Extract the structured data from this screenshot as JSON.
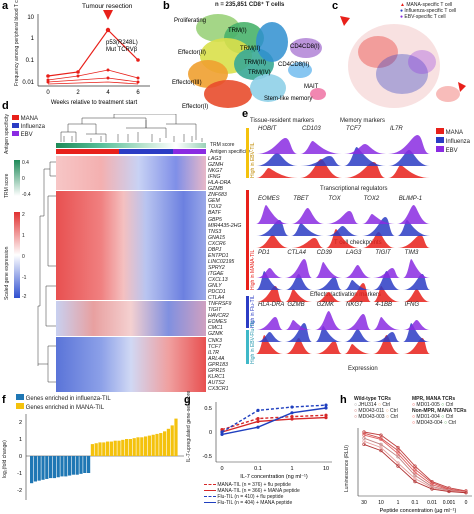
{
  "panels": {
    "a": {
      "label": "a",
      "annotation": "Tumour resection",
      "mutation": "p53(R248L)",
      "tcr": "Mut TCRVβ",
      "ylabel": "Frequency among peripheral blood T cells (%)",
      "xlabel": "Weeks relative to treatment start",
      "yticks": [
        "10",
        "1",
        "0.1",
        "0.01"
      ],
      "xticks": [
        "0",
        "2",
        "4",
        "6"
      ]
    },
    "b": {
      "label": "b",
      "title": "n = 235,851 CD8⁺ T cells",
      "clusters": [
        "Proliferating",
        "TRM(I)",
        "TRM(II)",
        "TRM(III)",
        "TRM(IV)",
        "Effector(II)",
        "Effector(III)",
        "Effector(I)",
        "CD4CD8(I)",
        "CD4CD8(II)",
        "MAIT",
        "Stem-like memory"
      ]
    },
    "c": {
      "label": "c",
      "legend": [
        "MANA-specific T cell",
        "Influenza-specific T cell",
        "EBV-specific T cell"
      ]
    },
    "d": {
      "label": "d",
      "row_labels": [
        "TRM score",
        "Antigen specificity"
      ],
      "legend_title": "Antigen specificity",
      "legend": [
        "MANA",
        "Influenza",
        "EBV"
      ],
      "trm_title": "TRM score",
      "trm_ticks": [
        "0.4",
        "0",
        "-0.4"
      ],
      "expr_title": "Scaled gene expression",
      "expr_ticks": [
        "2",
        "1",
        "0",
        "-1",
        "-2"
      ],
      "genes": [
        "LAG3",
        "GZMH",
        "NKG7",
        "IFNG",
        "HLA-DRA",
        "GZMB",
        "ZNF683",
        "GEM",
        "TOX2",
        "BATF",
        "GBP5",
        "MIR4435-2HG",
        "TNS3",
        "GNA15",
        "CXCR6",
        "DBPJ",
        "ENTPD1",
        "LINC02195",
        "SPRY2",
        "ITGAE",
        "CXCL13",
        "GNLY",
        "PDCD1",
        "CTLA4",
        "TNFRSF9",
        "TIGIT",
        "HAVCR2",
        "EOMES",
        "CMC1",
        "GZMK",
        "CNK3",
        "TCF7",
        "IL7R",
        "ARL4A",
        "GPR183",
        "GPR15",
        "KLRC1",
        "AUTS2",
        "CX3CR1"
      ]
    },
    "e": {
      "label": "e",
      "group_headers": [
        "Tissue-resident markers",
        "Memory markers",
        "Transcriptional regulators",
        "T cell checkpoints",
        "Effector/activation markers"
      ],
      "rows": [
        {
          "genes": [
            "HOBIT",
            "CD103",
            "TCF7",
            "IL7R"
          ]
        },
        {
          "genes": [
            "EOMES",
            "TBET",
            "TOX",
            "TOX2",
            "BLIMP-1"
          ]
        },
        {
          "genes": [
            "PD1",
            "CTLA4",
            "CD39",
            "LAG3",
            "TIGIT",
            "TIM3"
          ]
        },
        {
          "genes": [
            "HLA-DRA",
            "GZMB",
            "GZMK",
            "NKG7",
            "4-1BB",
            "IFNG"
          ]
        }
      ],
      "side_labels": [
        "High in EBV-TIL",
        "High in MANA-TIL",
        "High in Flu-TIL",
        "High in EBV-Flu-TIL"
      ],
      "legend": [
        "MANA",
        "Influenza",
        "EBV"
      ],
      "xlabel": "Expression"
    },
    "f": {
      "label": "f",
      "legend": [
        "Genes enriched in influenza-TIL",
        "Genes enriched in MANA-TIL"
      ],
      "ylabel": "log₂(fold change)",
      "yticks": [
        "2",
        "1",
        "0",
        "-1",
        "-2"
      ],
      "chart_data": {
        "type": "bar",
        "series": [
          {
            "name": "Genes enriched in influenza-TIL",
            "values": [
              -1.6,
              -1.5,
              -1.45,
              -1.4,
              -1.35,
              -1.3,
              -1.3,
              -1.25,
              -1.2,
              -1.2,
              -1.15,
              -1.1,
              -1.1,
              -1.05,
              -1.0,
              -1.0
            ]
          },
          {
            "name": "Genes enriched in MANA-TIL",
            "values": [
              0.7,
              0.75,
              0.8,
              0.8,
              0.85,
              0.85,
              0.9,
              0.9,
              0.95,
              1.0,
              1.0,
              1.05,
              1.1,
              1.1,
              1.15,
              1.2,
              1.25,
              1.3,
              1.35,
              1.45,
              1.6,
              1.8,
              2.2
            ]
          }
        ],
        "ylim": [
          -2,
          2.5
        ]
      }
    },
    "g": {
      "label": "g",
      "ylabel": "IL-7-upregulated gene-set score",
      "xlabel": "IL-7 concentration (ng ml⁻¹)",
      "xticks": [
        "0",
        "0.1",
        "1",
        "10"
      ],
      "yticks": [
        "0.5",
        "0",
        "-0.5"
      ],
      "chart_data": {
        "type": "line",
        "x": [
          "0",
          "0.1",
          "1",
          "10"
        ],
        "series": [
          {
            "name": "MANA-TIL (n = 376) + flu peptide",
            "color": "#d62728",
            "values": [
              0.05,
              0.28,
              0.32,
              0.35
            ]
          },
          {
            "name": "MANA-TIL (n = 366) + MANA peptide",
            "color": "#d62728",
            "values": [
              0.0,
              0.22,
              0.27,
              0.3
            ]
          },
          {
            "name": "Flu-TIL (n = 410) + flu peptide",
            "color": "#1f3fbf",
            "values": [
              0.0,
              0.45,
              0.52,
              0.56
            ]
          },
          {
            "name": "Flu-TIL (n = 404) + MANA peptide",
            "color": "#1f3fbf",
            "values": [
              -0.05,
              0.1,
              0.4,
              0.5
            ]
          }
        ],
        "ylim": [
          -0.6,
          0.7
        ]
      }
    },
    "h": {
      "label": "h",
      "ylabel": "Luminescence (RLU)",
      "xlabel": "Peptide concentration (µg ml⁻¹)",
      "legend_wt": "Wild-type TCRs",
      "legend_mut": "MPR, MANA TCRs",
      "legend_nonmpr": "Non-MPR, MANA TCRs",
      "wt": [
        "JHU314",
        "MD043-011",
        "MD043-003"
      ],
      "mpr": [
        "MD01-005",
        "MD01-004",
        "MD043-004"
      ],
      "ctrl": "Ctrl",
      "xticks": [
        "30",
        "10",
        "1",
        "0.1",
        "0.01",
        "0.001",
        "0"
      ],
      "chart_data": {
        "type": "line",
        "x": [
          "30",
          "10",
          "1",
          "0.1",
          "0.01",
          "0.001",
          "0"
        ],
        "series": [
          {
            "values": [
              1.0,
              0.95,
              0.75,
              0.45,
              0.2,
              0.1,
              0.05
            ]
          },
          {
            "values": [
              0.98,
              0.9,
              0.7,
              0.4,
              0.18,
              0.08,
              0.04
            ]
          },
          {
            "values": [
              0.95,
              0.88,
              0.65,
              0.35,
              0.15,
              0.07,
              0.04
            ]
          },
          {
            "values": [
              0.9,
              0.8,
              0.6,
              0.3,
              0.12,
              0.06,
              0.03
            ]
          },
          {
            "values": [
              0.85,
              0.75,
              0.5,
              0.25,
              0.1,
              0.05,
              0.03
            ]
          },
          {
            "values": [
              0.8,
              0.7,
              0.45,
              0.2,
              0.08,
              0.04,
              0.02
            ]
          }
        ]
      }
    }
  },
  "colors": {
    "mana": "#e8201a",
    "flu": "#2b3cc4",
    "ebv": "#8a2be2",
    "trm": "#2e9e6a",
    "gold": "#f4c20d",
    "blue": "#1f77b4",
    "heatHigh": "#e04040",
    "heatLow": "#3b5bdb"
  }
}
